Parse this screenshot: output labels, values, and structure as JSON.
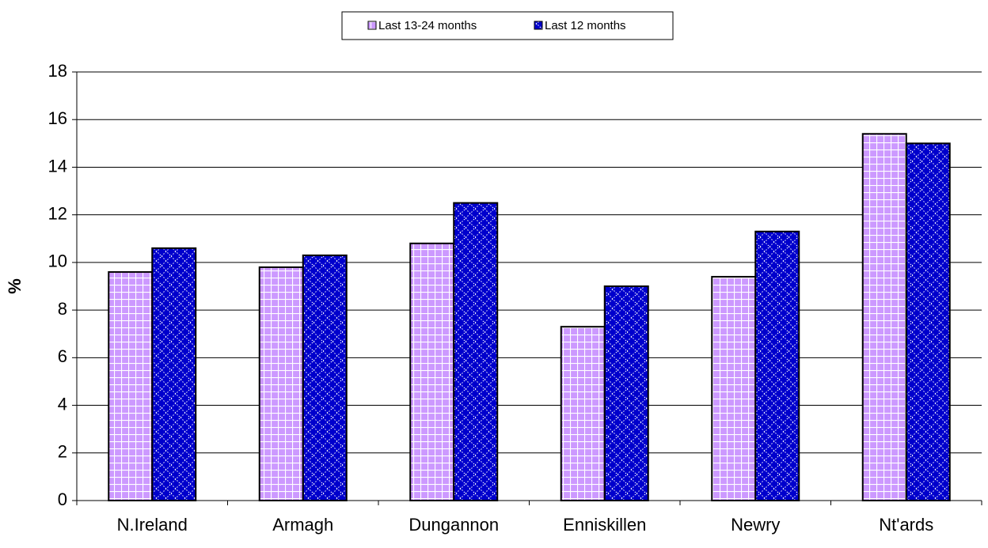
{
  "chart_data": {
    "type": "bar",
    "y_label": "%",
    "categories": [
      "N.Ireland",
      "Armagh",
      "Dungannon",
      "Enniskillen",
      "Newry",
      "Nt'ards"
    ],
    "series": [
      {
        "name": "Last 13-24 months",
        "color": "#cc99ff",
        "values": [
          9.6,
          9.8,
          10.8,
          7.3,
          9.4,
          15.4
        ]
      },
      {
        "name": "Last 12 months",
        "color": "#0000cc",
        "values": [
          10.6,
          10.3,
          12.5,
          9.0,
          11.3,
          15.0
        ]
      }
    ],
    "ylim": [
      0,
      18
    ],
    "yticks": [
      0,
      2,
      4,
      6,
      8,
      10,
      12,
      14,
      16,
      18
    ],
    "grid": true,
    "legend": "top"
  }
}
